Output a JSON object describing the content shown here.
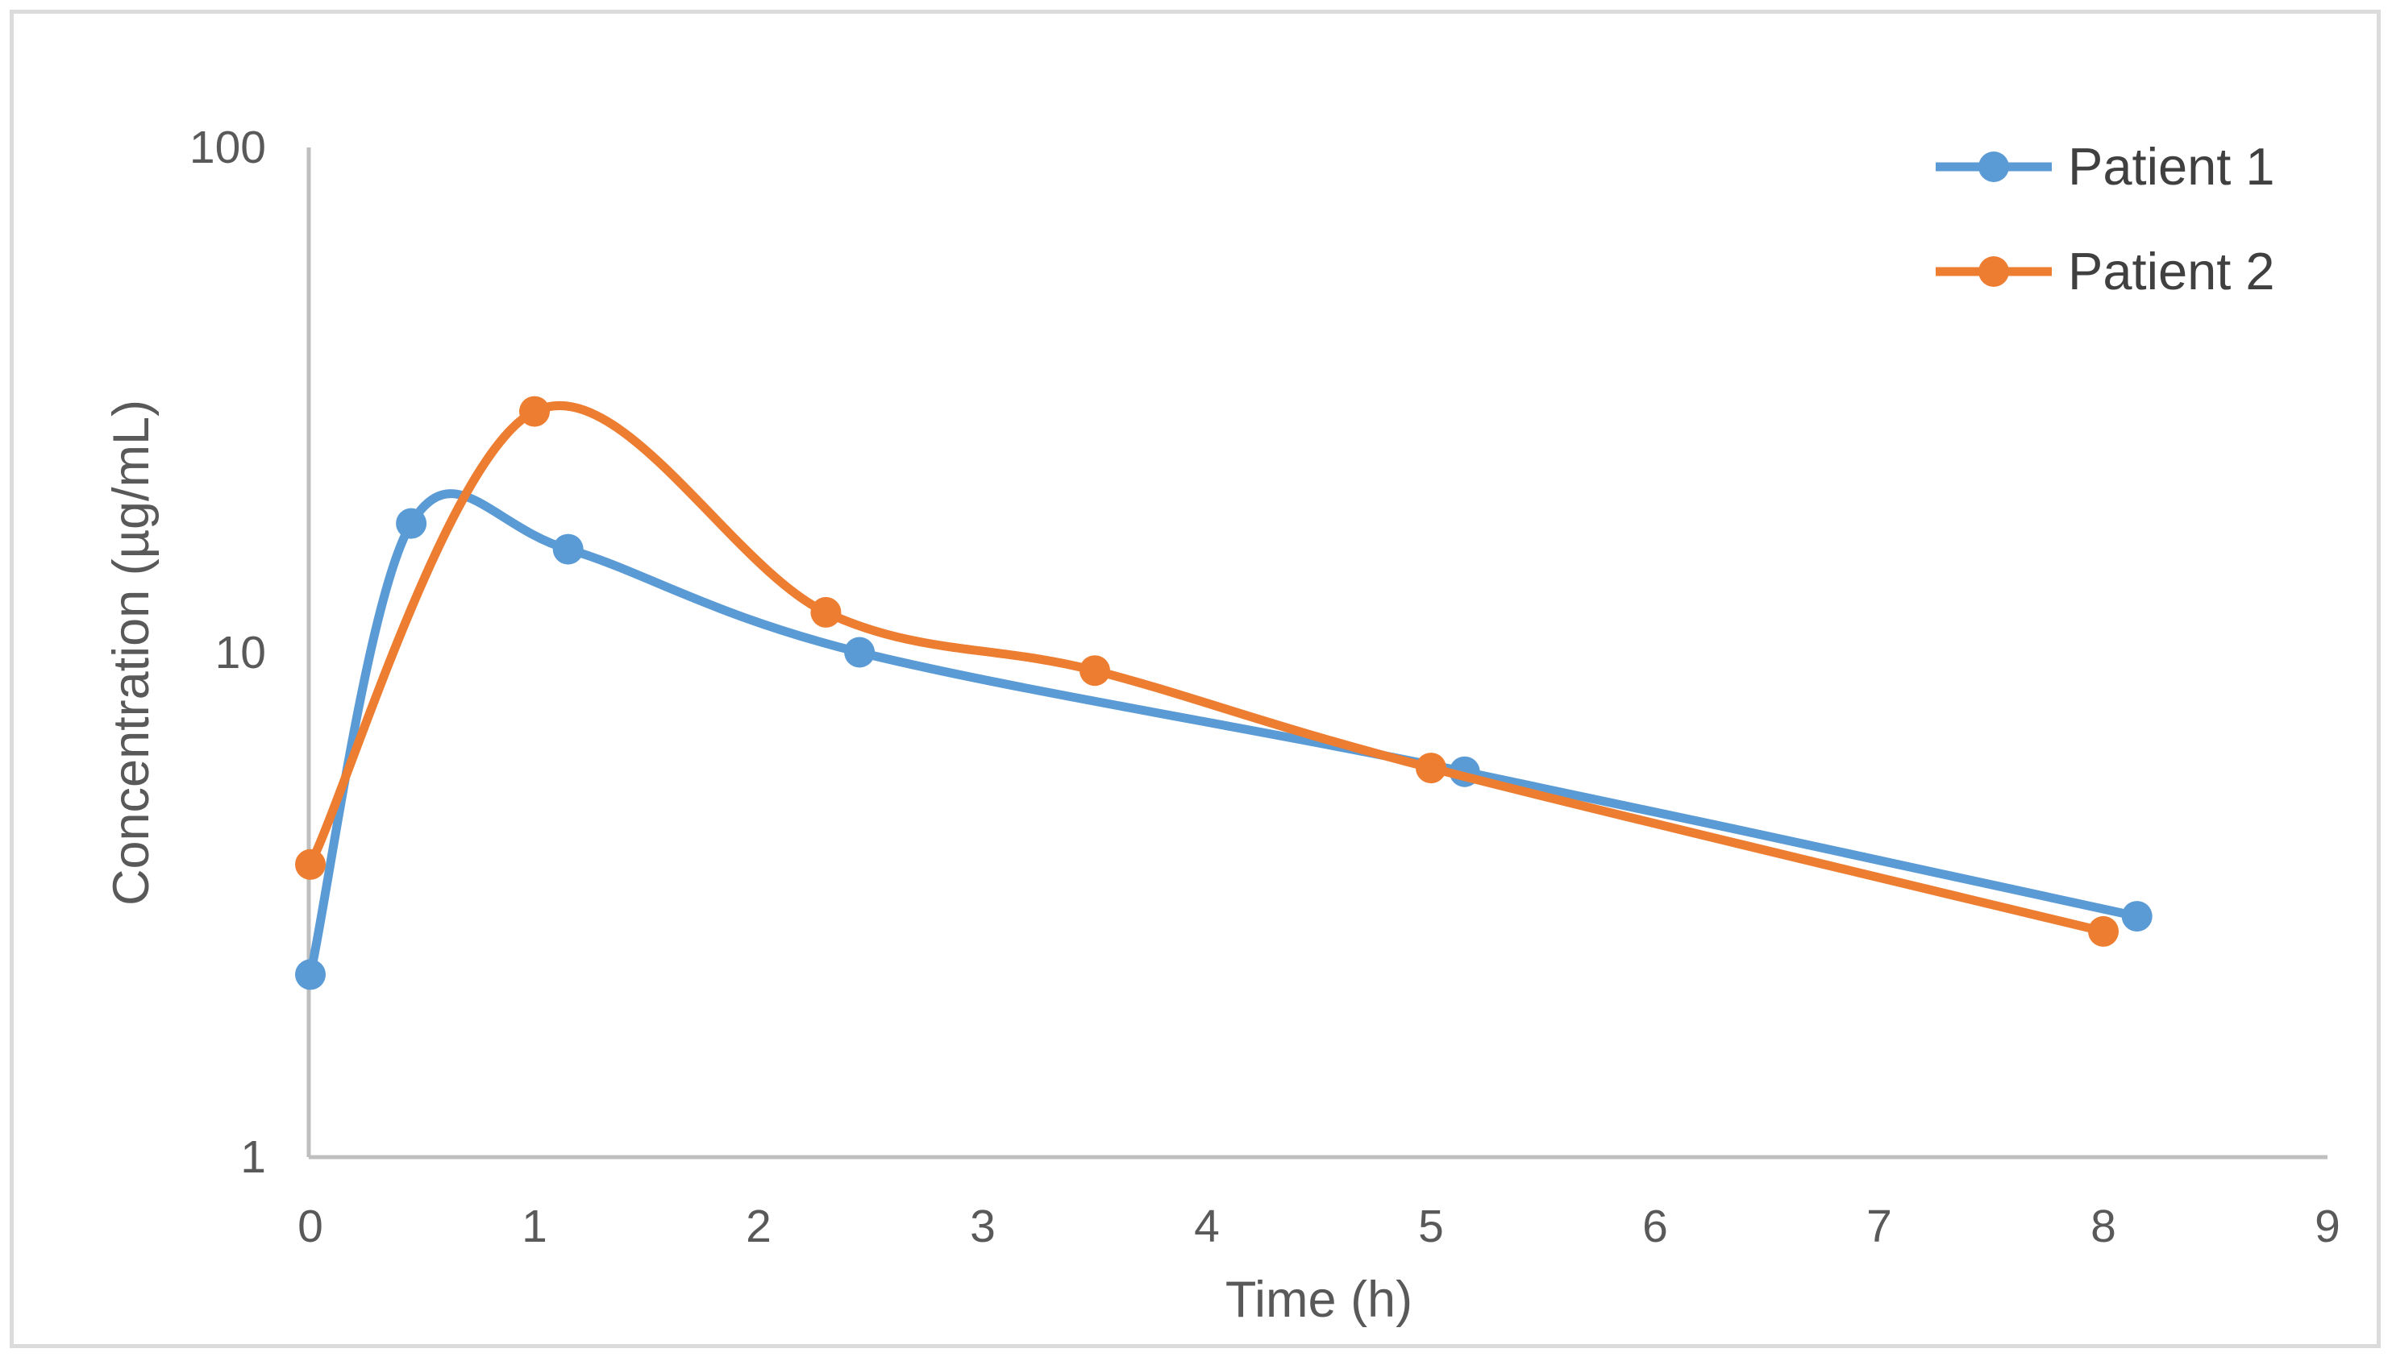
{
  "chart_data": {
    "type": "line",
    "title": "",
    "xlabel": "Time (h)",
    "ylabel": "Concentration (µg/mL)",
    "x_axis": {
      "min": 0,
      "max": 9,
      "scale": "linear",
      "ticks": [
        0,
        1,
        2,
        3,
        4,
        5,
        6,
        7,
        8,
        9
      ]
    },
    "y_axis": {
      "min": 1,
      "max": 100,
      "scale": "log",
      "ticks": [
        1,
        10,
        100
      ]
    },
    "grid": false,
    "legend_position": "top-right",
    "line_style": "smooth",
    "marker": "circle",
    "series": [
      {
        "name": "Patient 1",
        "color": "#5B9BD5",
        "points": [
          {
            "t": 0,
            "c": 2.3
          },
          {
            "t": 0.45,
            "c": 18
          },
          {
            "t": 1.15,
            "c": 16
          },
          {
            "t": 2.45,
            "c": 10
          },
          {
            "t": 5.15,
            "c": 5.8
          },
          {
            "t": 8.15,
            "c": 3.0
          }
        ]
      },
      {
        "name": "Patient 2",
        "color": "#ED7D31",
        "points": [
          {
            "t": 0,
            "c": 3.8
          },
          {
            "t": 1.0,
            "c": 30
          },
          {
            "t": 2.3,
            "c": 12
          },
          {
            "t": 3.5,
            "c": 9.2
          },
          {
            "t": 5.0,
            "c": 5.9
          },
          {
            "t": 8.0,
            "c": 2.8
          }
        ]
      }
    ]
  },
  "colors": {
    "axis_line": "#BFBFBF",
    "tick_text": "#595959",
    "axis_title_text": "#595959",
    "legend_text": "#404040",
    "border": "#DBDBDB",
    "background": "#FFFFFF"
  }
}
